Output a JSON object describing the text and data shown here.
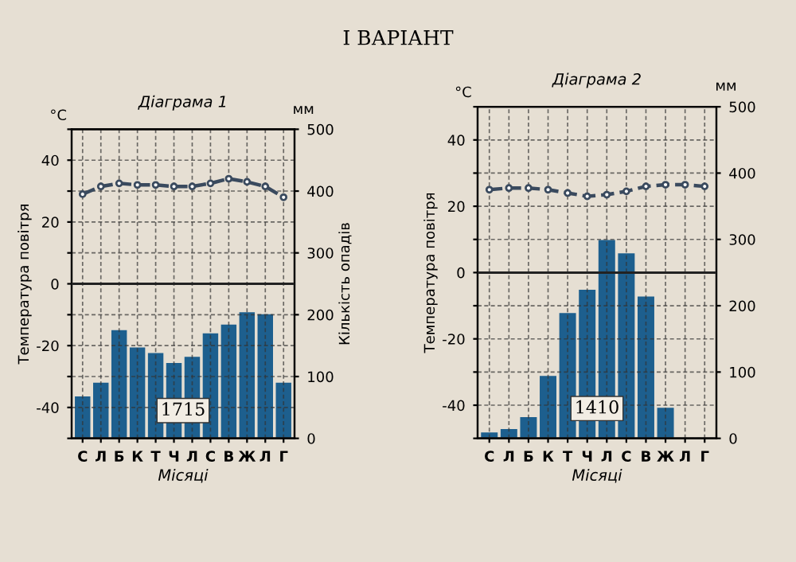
{
  "chart_data": [
    {
      "type": "bar",
      "title": "Діаграма 1",
      "xlabel": "Місяці",
      "ylabel": "Температура повітря",
      "y2label": "Кількість опадів",
      "categories": [
        "С",
        "Л",
        "Б",
        "К",
        "Т",
        "Ч",
        "Л",
        "С",
        "В",
        "Ж",
        "Л",
        "Г"
      ],
      "series": [
        {
          "axis": "y2",
          "color": "#1d5f8e",
          "values": [
            69,
            91,
            176,
            148,
            139,
            123,
            133,
            171,
            185,
            205,
            202,
            91
          ]
        },
        {
          "type": "line",
          "axis": "y",
          "color": "#3a4a5e",
          "line_style": "dashed",
          "marker": "circle",
          "values": [
            29,
            31.5,
            32.5,
            32,
            32,
            31.5,
            31.5,
            32.5,
            34,
            33,
            31.5,
            28
          ]
        }
      ],
      "ylim": [
        -50,
        50
      ],
      "yticks": [
        {
          "value": -50,
          "label": null
        },
        -40,
        {
          "value": -30,
          "label": null
        },
        -20,
        {
          "value": -10,
          "label": null
        },
        0,
        {
          "value": 10,
          "label": null
        },
        20,
        {
          "value": 30,
          "label": null
        },
        40,
        {
          "value": 50,
          "label": null
        }
      ],
      "y2lim": [
        0,
        500
      ],
      "y2ticks": [
        0,
        100,
        200,
        300,
        400,
        500
      ],
      "ref_lines": [
        {
          "axis": "y",
          "value": 0,
          "color": "#222222"
        }
      ],
      "grid": true,
      "annotations": [
        "°C",
        "мм",
        "1715",
        "І ВАРІАНТ"
      ]
    },
    {
      "type": "bar",
      "title": "Діаграма 2",
      "xlabel": "Місяці",
      "ylabel": "Температура повітря",
      "categories": [
        "С",
        "Л",
        "Б",
        "К",
        "Т",
        "Ч",
        "Л",
        "С",
        "В",
        "Ж",
        "Л",
        "Г"
      ],
      "series": [
        {
          "axis": "y2",
          "color": "#1d5f8e",
          "values": [
            10,
            15,
            33,
            95,
            190,
            225,
            300,
            280,
            215,
            47,
            null,
            null
          ]
        },
        {
          "type": "line",
          "axis": "y",
          "color": "#3a4a5e",
          "line_style": "dashed",
          "marker": "circle",
          "values": [
            25,
            25.5,
            25.5,
            25,
            24,
            23,
            23.5,
            24.5,
            26,
            26.5,
            26.5,
            26
          ]
        }
      ],
      "ylim": [
        -50,
        50
      ],
      "yticks": [
        {
          "value": -50,
          "label": null
        },
        -40,
        {
          "value": -30,
          "label": null
        },
        -20,
        {
          "value": -10,
          "label": null
        },
        0,
        {
          "value": 10,
          "label": null
        },
        20,
        {
          "value": 30,
          "label": null
        },
        40,
        {
          "value": 50,
          "label": null
        }
      ],
      "y2lim": [
        0,
        500
      ],
      "y2ticks": [
        0,
        100,
        200,
        300,
        400,
        500
      ],
      "ref_lines": [
        {
          "axis": "y",
          "value": 0,
          "color": "#222222"
        }
      ],
      "grid": true,
      "annotations": [
        "°C",
        "мм",
        "1410"
      ]
    }
  ]
}
